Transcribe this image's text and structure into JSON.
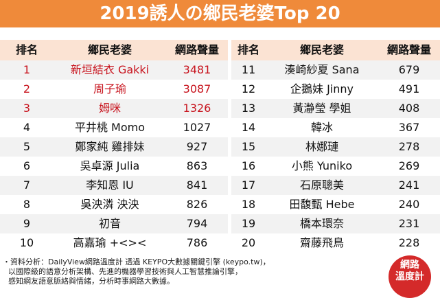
{
  "header": {
    "title": "2019誘人の鄉民老婆Top 20"
  },
  "tables": [
    {
      "columns": [
        "排名",
        "鄉民老婆",
        "網路聲量"
      ],
      "rows": [
        [
          1,
          "新垣結衣 Gakki",
          3481
        ],
        [
          2,
          "周子瑜",
          3087
        ],
        [
          3,
          "姆咪",
          1326
        ],
        [
          4,
          "平井桃 Momo",
          1027
        ],
        [
          5,
          "鄭家純 雞排妹",
          927
        ],
        [
          6,
          "吳卓源 Julia",
          863
        ],
        [
          7,
          "李知恩 IU",
          841
        ],
        [
          8,
          "吳泱潾 泱泱",
          826
        ],
        [
          9,
          "初音",
          794
        ],
        [
          10,
          "高嘉瑜 +<><",
          786
        ]
      ]
    },
    {
      "columns": [
        "排名",
        "鄉民老婆",
        "網路聲量"
      ],
      "rows": [
        [
          11,
          "湊崎紗夏 Sana",
          679
        ],
        [
          12,
          "企鵝妹 Jinny",
          491
        ],
        [
          13,
          "黃瀞瑩 學姐",
          408
        ],
        [
          14,
          "韓冰",
          367
        ],
        [
          15,
          "林娜璉",
          278
        ],
        [
          16,
          "小熊 Yuniko",
          269
        ],
        [
          17,
          "石原聰美",
          241
        ],
        [
          18,
          "田馥甄 Hebe",
          240
        ],
        [
          19,
          "橋本環奈",
          231
        ],
        [
          20,
          "齋藤飛鳥",
          228
        ]
      ]
    }
  ],
  "footer": [
    "・資料分析：DailyView網路溫度計 透過 KEYPO大數據關鍵引擎 (keypo.tw)，",
    "以國際級的語意分析架構、先進的機器學習技術與人工智慧推論引擎，",
    "感知網友語意脈絡與情緒，分析時事網路大數據。"
  ],
  "logo": {
    "line1": "網路",
    "line2": "溫度計"
  }
}
